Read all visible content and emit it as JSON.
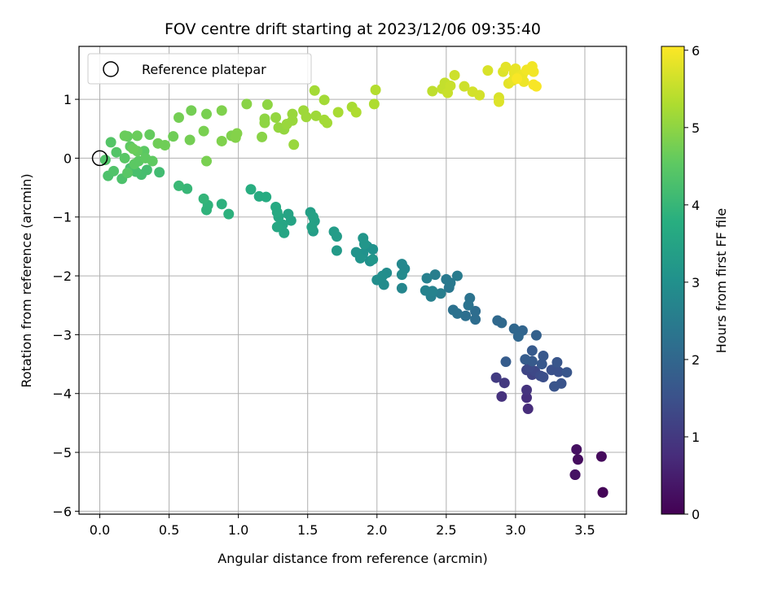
{
  "chart_data": {
    "type": "scatter",
    "title": "FOV centre drift starting at 2023/12/06 09:35:40",
    "xlabel": "Angular distance from reference (arcmin)",
    "ylabel": "Rotation from reference (arcmin)",
    "xlim": [
      -0.15,
      3.8
    ],
    "ylim": [
      -6.05,
      1.9
    ],
    "xticks": [
      0.0,
      0.5,
      1.0,
      1.5,
      2.0,
      2.5,
      3.0,
      3.5
    ],
    "xtick_labels": [
      "0.0",
      "0.5",
      "1.0",
      "1.5",
      "2.0",
      "2.5",
      "3.0",
      "3.5"
    ],
    "yticks": [
      1,
      0,
      -1,
      -2,
      -3,
      -4,
      -5,
      -6
    ],
    "ytick_labels": [
      "1",
      "0",
      "−1",
      "−2",
      "−3",
      "−4",
      "−5",
      "−6"
    ],
    "grid": true,
    "legend": {
      "position": "upper-left",
      "entries": [
        {
          "label": "Reference platepar",
          "marker": "open-circle"
        }
      ]
    },
    "reference_point": {
      "x": 0.0,
      "y": 0.0
    },
    "colorbar": {
      "label": "Hours from first FF file",
      "colormap": "viridis",
      "range": [
        0,
        6.05
      ],
      "ticks": [
        0,
        1,
        2,
        3,
        4,
        5,
        6
      ],
      "tick_labels": [
        "0",
        "1",
        "2",
        "3",
        "4",
        "5",
        "6"
      ]
    },
    "points": [
      {
        "x": 3.63,
        "y": -5.68,
        "c": 0.0
      },
      {
        "x": 3.63,
        "y": -5.68,
        "c": 0.05
      },
      {
        "x": 3.43,
        "y": -5.38,
        "c": 0.1
      },
      {
        "x": 3.62,
        "y": -5.07,
        "c": 0.15
      },
      {
        "x": 3.45,
        "y": -5.12,
        "c": 0.2
      },
      {
        "x": 3.44,
        "y": -4.95,
        "c": 0.25
      },
      {
        "x": 3.43,
        "y": -5.38,
        "c": 0.3
      },
      {
        "x": 3.09,
        "y": -4.26,
        "c": 0.75
      },
      {
        "x": 3.08,
        "y": -4.07,
        "c": 0.8
      },
      {
        "x": 2.9,
        "y": -4.05,
        "c": 0.85
      },
      {
        "x": 3.08,
        "y": -3.94,
        "c": 0.9
      },
      {
        "x": 2.92,
        "y": -3.82,
        "c": 1.0
      },
      {
        "x": 2.86,
        "y": -3.73,
        "c": 1.05
      },
      {
        "x": 3.12,
        "y": -3.68,
        "c": 1.2
      },
      {
        "x": 3.08,
        "y": -3.6,
        "c": 1.25
      },
      {
        "x": 3.14,
        "y": -3.62,
        "c": 1.3
      },
      {
        "x": 3.1,
        "y": -3.55,
        "c": 1.35
      },
      {
        "x": 3.18,
        "y": -3.7,
        "c": 1.4
      },
      {
        "x": 3.2,
        "y": -3.72,
        "c": 1.45
      },
      {
        "x": 3.26,
        "y": -3.6,
        "c": 1.5
      },
      {
        "x": 3.31,
        "y": -3.63,
        "c": 1.5
      },
      {
        "x": 3.28,
        "y": -3.88,
        "c": 1.55
      },
      {
        "x": 3.33,
        "y": -3.83,
        "c": 1.55
      },
      {
        "x": 3.37,
        "y": -3.64,
        "c": 1.6
      },
      {
        "x": 3.3,
        "y": -3.47,
        "c": 1.6
      },
      {
        "x": 3.19,
        "y": -3.5,
        "c": 1.65
      },
      {
        "x": 3.2,
        "y": -3.36,
        "c": 1.65
      },
      {
        "x": 3.12,
        "y": -3.45,
        "c": 1.7
      },
      {
        "x": 3.12,
        "y": -3.27,
        "c": 1.7
      },
      {
        "x": 3.07,
        "y": -3.42,
        "c": 1.75
      },
      {
        "x": 2.93,
        "y": -3.46,
        "c": 1.75
      },
      {
        "x": 3.15,
        "y": -3.01,
        "c": 1.85
      },
      {
        "x": 3.05,
        "y": -2.93,
        "c": 1.95
      },
      {
        "x": 2.99,
        "y": -2.9,
        "c": 2.0
      },
      {
        "x": 3.02,
        "y": -3.03,
        "c": 2.0
      },
      {
        "x": 2.9,
        "y": -2.8,
        "c": 2.05
      },
      {
        "x": 2.87,
        "y": -2.76,
        "c": 2.05
      },
      {
        "x": 2.71,
        "y": -2.74,
        "c": 2.15
      },
      {
        "x": 2.71,
        "y": -2.6,
        "c": 2.15
      },
      {
        "x": 2.64,
        "y": -2.68,
        "c": 2.2
      },
      {
        "x": 2.55,
        "y": -2.58,
        "c": 2.25
      },
      {
        "x": 2.58,
        "y": -2.64,
        "c": 2.25
      },
      {
        "x": 2.66,
        "y": -2.5,
        "c": 2.3
      },
      {
        "x": 2.67,
        "y": -2.38,
        "c": 2.3
      },
      {
        "x": 2.52,
        "y": -2.2,
        "c": 2.4
      },
      {
        "x": 2.53,
        "y": -2.12,
        "c": 2.45
      },
      {
        "x": 2.5,
        "y": -2.06,
        "c": 2.45
      },
      {
        "x": 2.58,
        "y": -2.0,
        "c": 2.5
      },
      {
        "x": 2.42,
        "y": -1.98,
        "c": 2.55
      },
      {
        "x": 2.46,
        "y": -2.3,
        "c": 2.55
      },
      {
        "x": 2.39,
        "y": -2.35,
        "c": 2.6
      },
      {
        "x": 2.36,
        "y": -2.04,
        "c": 2.6
      },
      {
        "x": 2.35,
        "y": -2.25,
        "c": 2.65
      },
      {
        "x": 2.4,
        "y": -2.26,
        "c": 2.65
      },
      {
        "x": 2.18,
        "y": -2.21,
        "c": 2.75
      },
      {
        "x": 2.2,
        "y": -1.88,
        "c": 2.8
      },
      {
        "x": 2.18,
        "y": -1.8,
        "c": 2.8
      },
      {
        "x": 2.18,
        "y": -1.98,
        "c": 2.85
      },
      {
        "x": 2.05,
        "y": -2.15,
        "c": 2.9
      },
      {
        "x": 2.07,
        "y": -1.95,
        "c": 2.9
      },
      {
        "x": 2.0,
        "y": -2.07,
        "c": 2.95
      },
      {
        "x": 2.04,
        "y": -2.0,
        "c": 2.95
      },
      {
        "x": 1.95,
        "y": -1.75,
        "c": 3.0
      },
      {
        "x": 1.93,
        "y": -1.5,
        "c": 3.0
      },
      {
        "x": 1.97,
        "y": -1.55,
        "c": 3.05
      },
      {
        "x": 1.9,
        "y": -1.62,
        "c": 3.05
      },
      {
        "x": 1.88,
        "y": -1.7,
        "c": 3.1
      },
      {
        "x": 1.85,
        "y": -1.6,
        "c": 3.1
      },
      {
        "x": 1.91,
        "y": -1.46,
        "c": 3.15
      },
      {
        "x": 1.9,
        "y": -1.36,
        "c": 3.15
      },
      {
        "x": 1.97,
        "y": -1.72,
        "c": 3.15
      },
      {
        "x": 1.71,
        "y": -1.57,
        "c": 3.25
      },
      {
        "x": 1.71,
        "y": -1.33,
        "c": 3.3
      },
      {
        "x": 1.69,
        "y": -1.25,
        "c": 3.3
      },
      {
        "x": 1.54,
        "y": -1.24,
        "c": 3.35
      },
      {
        "x": 1.55,
        "y": -1.07,
        "c": 3.4
      },
      {
        "x": 1.52,
        "y": -0.92,
        "c": 3.4
      },
      {
        "x": 1.54,
        "y": -1.0,
        "c": 3.45
      },
      {
        "x": 1.53,
        "y": -1.17,
        "c": 3.45
      },
      {
        "x": 1.38,
        "y": -1.06,
        "c": 3.5
      },
      {
        "x": 1.36,
        "y": -0.95,
        "c": 3.5
      },
      {
        "x": 1.33,
        "y": -1.27,
        "c": 3.55
      },
      {
        "x": 1.32,
        "y": -1.13,
        "c": 3.55
      },
      {
        "x": 1.28,
        "y": -1.17,
        "c": 3.6
      },
      {
        "x": 1.29,
        "y": -1.0,
        "c": 3.6
      },
      {
        "x": 1.28,
        "y": -0.92,
        "c": 3.65
      },
      {
        "x": 1.27,
        "y": -0.83,
        "c": 3.65
      },
      {
        "x": 1.15,
        "y": -0.65,
        "c": 3.7
      },
      {
        "x": 1.2,
        "y": -0.66,
        "c": 3.7
      },
      {
        "x": 1.09,
        "y": -0.53,
        "c": 3.75
      },
      {
        "x": 0.93,
        "y": -0.95,
        "c": 3.85
      },
      {
        "x": 0.88,
        "y": -0.78,
        "c": 3.85
      },
      {
        "x": 0.77,
        "y": -0.88,
        "c": 3.9
      },
      {
        "x": 0.78,
        "y": -0.8,
        "c": 3.9
      },
      {
        "x": 0.75,
        "y": -0.69,
        "c": 3.95
      },
      {
        "x": 0.63,
        "y": -0.52,
        "c": 4.0
      },
      {
        "x": 0.57,
        "y": -0.47,
        "c": 4.05
      },
      {
        "x": 0.43,
        "y": -0.24,
        "c": 4.15
      },
      {
        "x": 0.34,
        "y": -0.2,
        "c": 4.2
      },
      {
        "x": 0.3,
        "y": -0.28,
        "c": 4.2
      },
      {
        "x": 0.26,
        "y": -0.23,
        "c": 4.25
      },
      {
        "x": 0.22,
        "y": -0.17,
        "c": 4.25
      },
      {
        "x": 0.16,
        "y": -0.35,
        "c": 4.3
      },
      {
        "x": 0.06,
        "y": -0.3,
        "c": 4.3
      },
      {
        "x": 0.1,
        "y": -0.22,
        "c": 4.35
      },
      {
        "x": 0.04,
        "y": -0.03,
        "c": 4.35
      },
      {
        "x": 0.12,
        "y": 0.1,
        "c": 4.4
      },
      {
        "x": 0.08,
        "y": 0.27,
        "c": 4.4
      },
      {
        "x": 0.18,
        "y": 0.0,
        "c": 4.45
      },
      {
        "x": 0.2,
        "y": -0.25,
        "c": 4.45
      },
      {
        "x": 0.25,
        "y": -0.1,
        "c": 4.5
      },
      {
        "x": 0.28,
        "y": -0.05,
        "c": 4.5
      },
      {
        "x": 0.32,
        "y": 0.12,
        "c": 4.5
      },
      {
        "x": 0.33,
        "y": 0.0,
        "c": 4.55
      },
      {
        "x": 0.38,
        "y": -0.05,
        "c": 4.55
      },
      {
        "x": 0.22,
        "y": 0.2,
        "c": 4.55
      },
      {
        "x": 0.27,
        "y": 0.12,
        "c": 4.6
      },
      {
        "x": 0.36,
        "y": 0.4,
        "c": 4.6
      },
      {
        "x": 0.2,
        "y": 0.37,
        "c": 4.6
      },
      {
        "x": 0.27,
        "y": 0.38,
        "c": 4.65
      },
      {
        "x": 0.18,
        "y": 0.38,
        "c": 4.65
      },
      {
        "x": 0.24,
        "y": 0.16,
        "c": 4.65
      },
      {
        "x": 0.42,
        "y": 0.25,
        "c": 4.7
      },
      {
        "x": 0.47,
        "y": 0.22,
        "c": 4.7
      },
      {
        "x": 0.53,
        "y": 0.37,
        "c": 4.7
      },
      {
        "x": 0.65,
        "y": 0.31,
        "c": 4.75
      },
      {
        "x": 0.57,
        "y": 0.69,
        "c": 4.75
      },
      {
        "x": 0.66,
        "y": 0.81,
        "c": 4.75
      },
      {
        "x": 0.75,
        "y": 0.46,
        "c": 4.8
      },
      {
        "x": 0.77,
        "y": -0.05,
        "c": 4.8
      },
      {
        "x": 0.77,
        "y": 0.75,
        "c": 4.8
      },
      {
        "x": 0.88,
        "y": 0.81,
        "c": 4.85
      },
      {
        "x": 0.88,
        "y": 0.29,
        "c": 4.85
      },
      {
        "x": 0.95,
        "y": 0.38,
        "c": 4.85
      },
      {
        "x": 0.98,
        "y": 0.35,
        "c": 4.9
      },
      {
        "x": 0.99,
        "y": 0.42,
        "c": 4.9
      },
      {
        "x": 1.06,
        "y": 0.92,
        "c": 4.95
      },
      {
        "x": 1.17,
        "y": 0.36,
        "c": 4.95
      },
      {
        "x": 1.19,
        "y": 0.6,
        "c": 5.0
      },
      {
        "x": 1.19,
        "y": 0.67,
        "c": 5.0
      },
      {
        "x": 1.21,
        "y": 0.91,
        "c": 5.0
      },
      {
        "x": 1.27,
        "y": 0.69,
        "c": 5.05
      },
      {
        "x": 1.29,
        "y": 0.52,
        "c": 5.05
      },
      {
        "x": 1.33,
        "y": 0.49,
        "c": 5.05
      },
      {
        "x": 1.35,
        "y": 0.58,
        "c": 5.1
      },
      {
        "x": 1.39,
        "y": 0.75,
        "c": 5.1
      },
      {
        "x": 1.39,
        "y": 0.64,
        "c": 5.1
      },
      {
        "x": 1.4,
        "y": 0.23,
        "c": 5.1
      },
      {
        "x": 1.47,
        "y": 0.81,
        "c": 5.15
      },
      {
        "x": 1.49,
        "y": 0.7,
        "c": 5.15
      },
      {
        "x": 1.56,
        "y": 0.72,
        "c": 5.15
      },
      {
        "x": 1.55,
        "y": 1.15,
        "c": 5.2
      },
      {
        "x": 1.62,
        "y": 0.99,
        "c": 5.2
      },
      {
        "x": 1.64,
        "y": 0.6,
        "c": 5.2
      },
      {
        "x": 1.62,
        "y": 0.65,
        "c": 5.2
      },
      {
        "x": 1.72,
        "y": 0.78,
        "c": 5.25
      },
      {
        "x": 1.82,
        "y": 0.87,
        "c": 5.25
      },
      {
        "x": 1.85,
        "y": 0.78,
        "c": 5.3
      },
      {
        "x": 1.98,
        "y": 0.92,
        "c": 5.3
      },
      {
        "x": 1.99,
        "y": 1.16,
        "c": 5.35
      },
      {
        "x": 2.4,
        "y": 1.14,
        "c": 5.45
      },
      {
        "x": 2.47,
        "y": 1.18,
        "c": 5.5
      },
      {
        "x": 2.49,
        "y": 1.28,
        "c": 5.5
      },
      {
        "x": 2.51,
        "y": 1.11,
        "c": 5.55
      },
      {
        "x": 2.53,
        "y": 1.23,
        "c": 5.55
      },
      {
        "x": 2.56,
        "y": 1.41,
        "c": 5.6
      },
      {
        "x": 2.63,
        "y": 1.22,
        "c": 5.6
      },
      {
        "x": 2.69,
        "y": 1.13,
        "c": 5.65
      },
      {
        "x": 2.74,
        "y": 1.07,
        "c": 5.65
      },
      {
        "x": 2.8,
        "y": 1.49,
        "c": 5.7
      },
      {
        "x": 2.88,
        "y": 1.03,
        "c": 5.7
      },
      {
        "x": 2.88,
        "y": 0.96,
        "c": 5.75
      },
      {
        "x": 2.91,
        "y": 1.47,
        "c": 5.75
      },
      {
        "x": 2.93,
        "y": 1.55,
        "c": 5.8
      },
      {
        "x": 2.95,
        "y": 1.27,
        "c": 5.8
      },
      {
        "x": 2.98,
        "y": 1.32,
        "c": 5.85
      },
      {
        "x": 2.99,
        "y": 1.45,
        "c": 5.85
      },
      {
        "x": 3.0,
        "y": 1.52,
        "c": 5.85
      },
      {
        "x": 3.02,
        "y": 1.38,
        "c": 5.9
      },
      {
        "x": 3.05,
        "y": 1.42,
        "c": 5.9
      },
      {
        "x": 3.06,
        "y": 1.3,
        "c": 5.9
      },
      {
        "x": 3.08,
        "y": 1.5,
        "c": 5.95
      },
      {
        "x": 3.12,
        "y": 1.56,
        "c": 5.95
      },
      {
        "x": 3.13,
        "y": 1.47,
        "c": 5.95
      },
      {
        "x": 3.13,
        "y": 1.25,
        "c": 6.0
      },
      {
        "x": 3.15,
        "y": 1.22,
        "c": 6.0
      },
      {
        "x": 3.01,
        "y": 1.35,
        "c": 6.0
      }
    ]
  }
}
